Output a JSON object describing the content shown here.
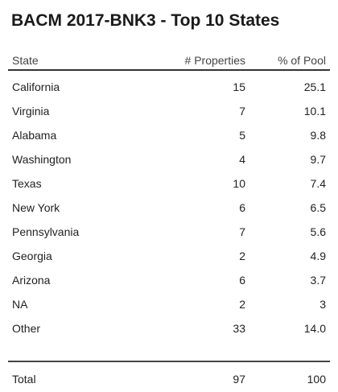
{
  "title": "BACM 2017-BNK3 - Top 10 States",
  "columns": {
    "state": "State",
    "properties": "# Properties",
    "pct": "% of Pool"
  },
  "rows": [
    {
      "state": "California",
      "properties": "15",
      "pct": "25.1"
    },
    {
      "state": "Virginia",
      "properties": "7",
      "pct": "10.1"
    },
    {
      "state": "Alabama",
      "properties": "5",
      "pct": "9.8"
    },
    {
      "state": "Washington",
      "properties": "4",
      "pct": "9.7"
    },
    {
      "state": "Texas",
      "properties": "10",
      "pct": "7.4"
    },
    {
      "state": "New York",
      "properties": "6",
      "pct": "6.5"
    },
    {
      "state": "Pennsylvania",
      "properties": "7",
      "pct": "5.6"
    },
    {
      "state": "Georgia",
      "properties": "2",
      "pct": "4.9"
    },
    {
      "state": "Arizona",
      "properties": "6",
      "pct": "3.7"
    },
    {
      "state": "NA",
      "properties": "2",
      "pct": "3"
    },
    {
      "state": "Other",
      "properties": "33",
      "pct": "14.0"
    }
  ],
  "total": {
    "label": "Total",
    "properties": "97",
    "pct": "100"
  }
}
